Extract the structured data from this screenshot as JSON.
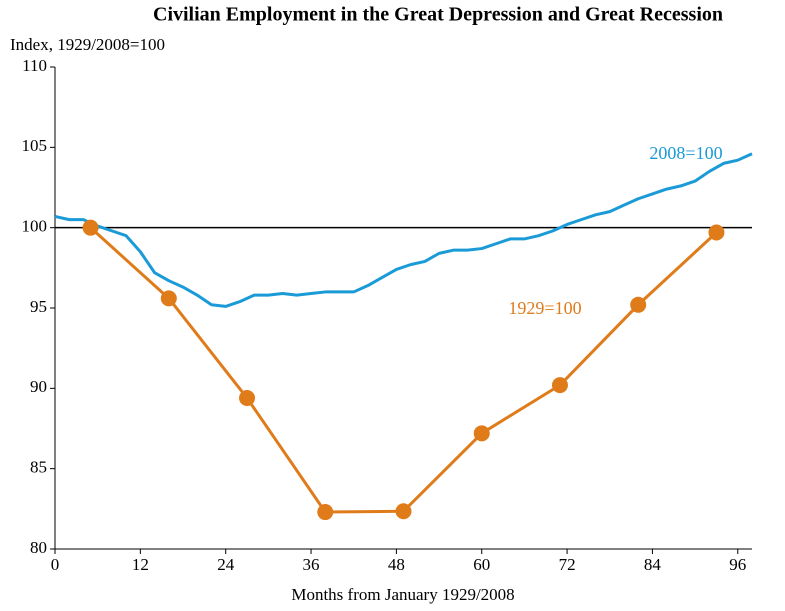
{
  "chart_data": {
    "type": "line",
    "title": "Civilian Employment in the Great Depression and Great Recession",
    "y_label": "Index, 1929/2008=100",
    "x_label": "Months from January 1929/2008",
    "xlim": [
      0,
      98
    ],
    "xticks": [
      0,
      12,
      24,
      36,
      48,
      60,
      72,
      84,
      96
    ],
    "ylim": [
      80,
      110
    ],
    "yticks": [
      80,
      85,
      90,
      95,
      100,
      105,
      110
    ],
    "reference_line": 100,
    "series": [
      {
        "name": "2008=100",
        "color": "#1a9bd7",
        "markers": false,
        "x": [
          0,
          2,
          4,
          6,
          8,
          10,
          12,
          14,
          16,
          18,
          20,
          22,
          24,
          26,
          28,
          30,
          32,
          34,
          36,
          38,
          40,
          42,
          44,
          46,
          48,
          50,
          52,
          54,
          56,
          58,
          60,
          62,
          64,
          66,
          68,
          70,
          72,
          74,
          76,
          78,
          80,
          82,
          84,
          86,
          88,
          90,
          92,
          94,
          96,
          98
        ],
        "values": [
          100.7,
          100.5,
          100.5,
          100.1,
          99.8,
          99.5,
          98.5,
          97.2,
          96.7,
          96.3,
          95.8,
          95.2,
          95.1,
          95.4,
          95.8,
          95.8,
          95.9,
          95.8,
          95.9,
          96.0,
          96.0,
          96.0,
          96.4,
          96.9,
          97.4,
          97.7,
          97.9,
          98.4,
          98.6,
          98.6,
          98.7,
          99.0,
          99.3,
          99.3,
          99.5,
          99.8,
          100.2,
          100.5,
          100.8,
          101.0,
          101.4,
          101.8,
          102.1,
          102.4,
          102.6,
          102.9,
          103.5,
          104.0,
          104.2,
          104.6
        ]
      },
      {
        "name": "1929=100",
        "color": "#e07b1a",
        "markers": true,
        "x": [
          5,
          16,
          27,
          38,
          49,
          60,
          71,
          82,
          93
        ],
        "values": [
          100,
          95.6,
          89.4,
          82.3,
          82.35,
          87.2,
          90.2,
          95.2,
          99.7
        ]
      }
    ]
  }
}
